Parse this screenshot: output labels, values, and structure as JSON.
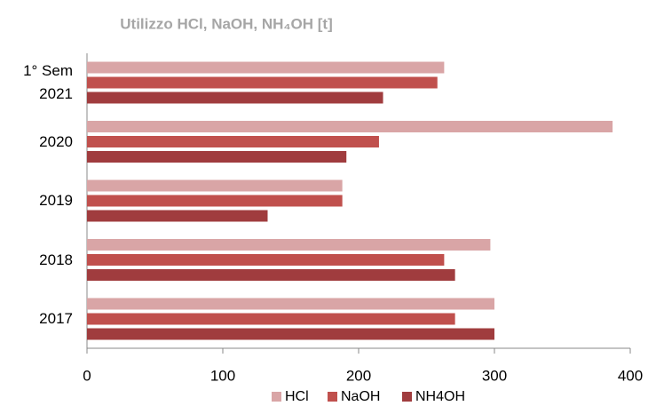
{
  "chart_data": {
    "type": "hbar",
    "title": "Utilizzo HCl, NaOH, NH₄OH [t]",
    "categories": [
      "1° Sem 2021",
      "2020",
      "2019",
      "2018",
      "2017"
    ],
    "series": [
      {
        "name": "HCl",
        "color": "#d9a5a6",
        "values": [
          263,
          387,
          188,
          297,
          300
        ]
      },
      {
        "name": "NaOH",
        "color": "#c0504d",
        "values": [
          258,
          215,
          188,
          263,
          271
        ]
      },
      {
        "name": "NH4OH",
        "color": "#a03c3e",
        "values": [
          218,
          191,
          133,
          271,
          300
        ]
      }
    ],
    "xlim": [
      0,
      400
    ],
    "xticks": [
      0,
      100,
      200,
      300,
      400
    ],
    "legend": "bottom"
  }
}
